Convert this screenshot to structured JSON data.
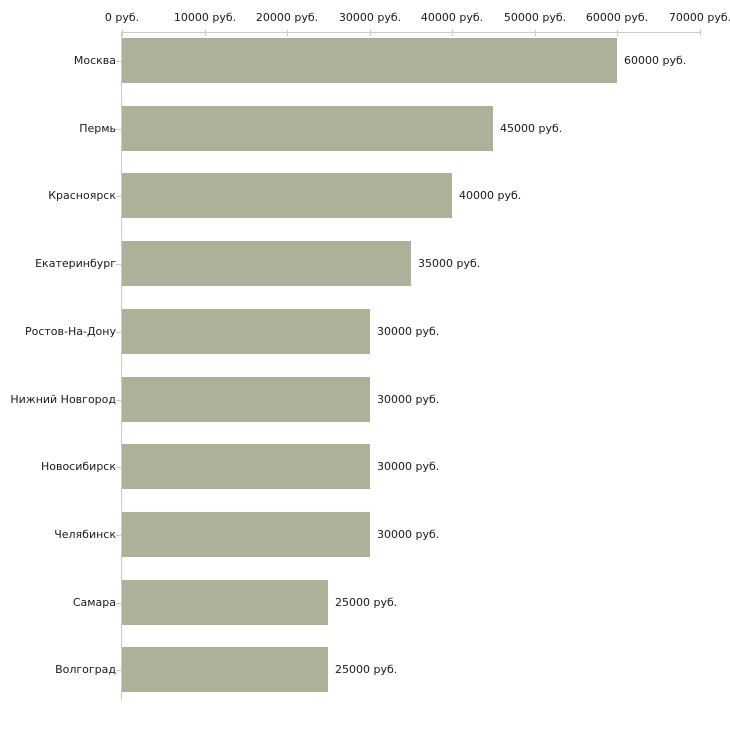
{
  "chart_data": {
    "type": "bar",
    "orientation": "horizontal",
    "title": "",
    "xlabel": "",
    "ylabel": "",
    "unit": "руб.",
    "categories": [
      "Москва",
      "Пермь",
      "Красноярск",
      "Екатеринбург",
      "Ростов-На-Дону",
      "Нижний Новгород",
      "Новосибирск",
      "Челябинск",
      "Самара",
      "Волгоград"
    ],
    "values": [
      60000,
      45000,
      40000,
      35000,
      30000,
      30000,
      30000,
      30000,
      25000,
      25000
    ],
    "value_labels": [
      "60000 руб.",
      "45000 руб.",
      "40000 руб.",
      "35000 руб.",
      "30000 руб.",
      "30000 руб.",
      "30000 руб.",
      "30000 руб.",
      "25000 руб.",
      "25000 руб."
    ],
    "x_ticks": [
      0,
      10000,
      20000,
      30000,
      40000,
      50000,
      60000,
      70000
    ],
    "x_tick_labels": [
      "0 руб.",
      "10000 руб.",
      "20000 руб.",
      "30000 руб.",
      "40000 руб.",
      "50000 руб.",
      "60000 руб.",
      "70000 руб."
    ],
    "xlim": [
      0,
      70000
    ],
    "grid": false,
    "legend": "none",
    "colors": {
      "bar": "#acb299",
      "axis": "#cccccc",
      "tick": "#c9cfa2",
      "text": "#1a1a1a",
      "background": "#ffffff"
    }
  }
}
